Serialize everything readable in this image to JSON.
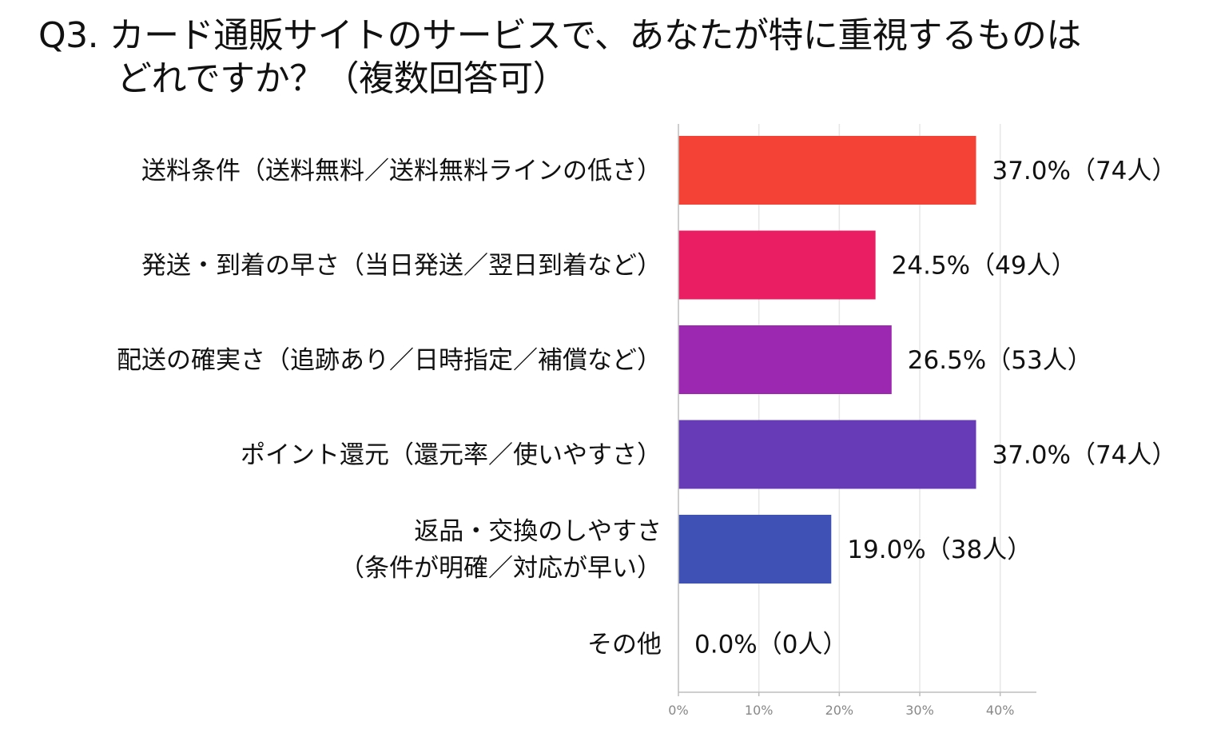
{
  "chart_data": {
    "type": "bar",
    "orientation": "horizontal",
    "title_line1": "Q3. カード通販サイトのサービスで、あなたが特に重視するものは",
    "title_line2": "どれですか？（複数回答可）",
    "categories": [
      [
        "送料条件（送料無料／送料無料ラインの低さ）"
      ],
      [
        "発送・到着の早さ（当日発送／翌日到着など）"
      ],
      [
        "配送の確実さ（追跡あり／日時指定／補償など）"
      ],
      [
        "ポイント還元（還元率／使いやすさ）"
      ],
      [
        "返品・交換のしやすさ",
        "（条件が明確／対応が早い）"
      ],
      [
        "その他"
      ]
    ],
    "values": [
      37.0,
      24.5,
      26.5,
      37.0,
      19.0,
      0.0
    ],
    "data_labels": [
      "37.0%（74人）",
      "24.5%（49人）",
      "26.5%（53人）",
      "37.0%（74人）",
      "19.0%（38人）",
      "0.0%（0人）"
    ],
    "colors": [
      "#f44336",
      "#e91e63",
      "#9c27b0",
      "#673ab7",
      "#3f51b5",
      "#2196f3"
    ],
    "xlim": [
      0,
      44.5
    ],
    "xticks": [
      0,
      10,
      20,
      30,
      40
    ],
    "xtick_labels": [
      "0%",
      "10%",
      "20%",
      "30%",
      "40%"
    ],
    "grid": true,
    "gridline_color": "#e6e6e6",
    "axis_color": "#bdbdbd"
  }
}
